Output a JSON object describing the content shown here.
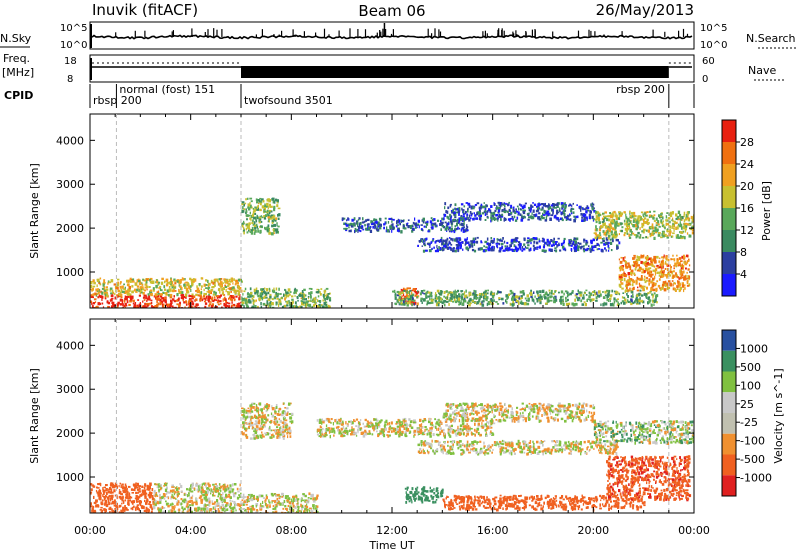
{
  "header": {
    "station": "Inuvik (fitACF)",
    "beam": "Beam 06",
    "date": "26/May/2013"
  },
  "top_panel": {
    "left_label": "N.Sky",
    "left_ticks": [
      "10^5",
      "10^0"
    ],
    "right_ticks": [
      "10^5",
      "10^0"
    ],
    "right_label": "N.Search"
  },
  "freq_panel": {
    "left_label_1": "Freq.",
    "left_label_2": "[MHz]",
    "left_ticks": [
      "18",
      "8"
    ],
    "right_ticks": [
      "60",
      "0"
    ],
    "right_label": "Nave"
  },
  "cpid": {
    "label": "CPID",
    "modes": [
      {
        "name": "rbsp 200",
        "start_hour": 0.0,
        "end_hour": 1.05,
        "row": 2
      },
      {
        "name": "normal (fost) 151",
        "start_hour": 1.05,
        "end_hour": 6.0,
        "row": 1
      },
      {
        "name": "twofsound 3501",
        "start_hour": 6.0,
        "end_hour": 23.0,
        "row": 2
      },
      {
        "name": "rbsp 200",
        "start_hour": 23.0,
        "end_hour": 24.0,
        "row": 1
      }
    ]
  },
  "colors": {
    "power": [
      "#1b1bff",
      "#2c3fa0",
      "#3a8a60",
      "#59a85a",
      "#c8c030",
      "#f0a020",
      "#f07010",
      "#e82010"
    ],
    "velocity": [
      "#e02020",
      "#f06020",
      "#f09030",
      "#c0c0b0",
      "#c8c8c8",
      "#80c040",
      "#3a9060",
      "#2850a0"
    ],
    "ground_scatter": "#bfbfbf"
  },
  "chart_data": [
    {
      "type": "heatmap",
      "panel": "power",
      "xlabel": "",
      "ylabel": "Slant Range [km]",
      "xlim": [
        0,
        24
      ],
      "ylim": [
        180,
        4600
      ],
      "x_ticks": [
        "00:00",
        "04:00",
        "08:00",
        "12:00",
        "16:00",
        "20:00",
        "00:00"
      ],
      "y_ticks": [
        1000,
        2000,
        3000,
        4000
      ],
      "colorbar": {
        "label": "Power [dB]",
        "ticks": [
          "28",
          "24",
          "20",
          "16",
          "12",
          "8",
          "4"
        ],
        "range": [
          0,
          30
        ]
      },
      "regions": [
        {
          "t0": 0.0,
          "t1": 6.0,
          "r0": 190,
          "r1": 500,
          "dB": 28
        },
        {
          "t0": 0.0,
          "t1": 6.0,
          "r0": 500,
          "r1": 880,
          "dB": 18
        },
        {
          "t0": 6.0,
          "t1": 9.5,
          "r0": 200,
          "r1": 650,
          "dB": 14
        },
        {
          "t0": 12.3,
          "t1": 13.0,
          "r0": 300,
          "r1": 650,
          "dB": 26
        },
        {
          "t0": 12.0,
          "t1": 22.5,
          "r0": 280,
          "r1": 600,
          "dB": 12
        },
        {
          "t0": 21.0,
          "t1": 23.8,
          "r0": 600,
          "r1": 1400,
          "dB": 22
        },
        {
          "t0": 6.0,
          "t1": 7.5,
          "r0": 1900,
          "r1": 2700,
          "dB": 14
        },
        {
          "t0": 10.0,
          "t1": 15.0,
          "r0": 1950,
          "r1": 2250,
          "dB": 6
        },
        {
          "t0": 14.0,
          "t1": 20.0,
          "r0": 2200,
          "r1": 2600,
          "dB": 6
        },
        {
          "t0": 13.0,
          "t1": 21.0,
          "r0": 1500,
          "r1": 1800,
          "dB": 5
        },
        {
          "t0": 20.0,
          "t1": 24.0,
          "r0": 1800,
          "r1": 2400,
          "dB": 16
        }
      ]
    },
    {
      "type": "heatmap",
      "panel": "velocity",
      "xlabel": "Time UT",
      "ylabel": "Slant Range [km]",
      "xlim": [
        0,
        24
      ],
      "ylim": [
        180,
        4600
      ],
      "x_ticks": [
        "00:00",
        "04:00",
        "08:00",
        "12:00",
        "16:00",
        "20:00",
        "00:00"
      ],
      "y_ticks": [
        1000,
        2000,
        3000,
        4000
      ],
      "colorbar": {
        "label": "Velocity [m s^-1]",
        "ticks": [
          "1000",
          "500",
          "100",
          "25",
          "-25",
          "-100",
          "-500",
          "-1000"
        ],
        "range": [
          -1000,
          1000
        ]
      },
      "regions": [
        {
          "t0": 0.0,
          "t1": 2.5,
          "r0": 200,
          "r1": 880,
          "v": -300
        },
        {
          "t0": 2.5,
          "t1": 6.0,
          "r0": 200,
          "r1": 880,
          "v": 0
        },
        {
          "t0": 6.0,
          "t1": 9.0,
          "r0": 200,
          "r1": 650,
          "v": 0
        },
        {
          "t0": 12.5,
          "t1": 14.0,
          "r0": 450,
          "r1": 800,
          "v": 300
        },
        {
          "t0": 14.0,
          "t1": 22.0,
          "r0": 280,
          "r1": 600,
          "v": -400
        },
        {
          "t0": 20.5,
          "t1": 23.8,
          "r0": 500,
          "r1": 1500,
          "v": -450
        },
        {
          "t0": 6.0,
          "t1": 8.0,
          "r0": 1900,
          "r1": 2700,
          "v": 0
        },
        {
          "t0": 9.0,
          "t1": 16.0,
          "r0": 1950,
          "r1": 2350,
          "v": 0
        },
        {
          "t0": 14.0,
          "t1": 20.0,
          "r0": 2300,
          "r1": 2700,
          "v": 0
        },
        {
          "t0": 13.0,
          "t1": 21.0,
          "r0": 1550,
          "r1": 1850,
          "v": 0
        },
        {
          "t0": 20.0,
          "t1": 24.0,
          "r0": 1800,
          "r1": 2300,
          "v": 50
        }
      ]
    }
  ]
}
